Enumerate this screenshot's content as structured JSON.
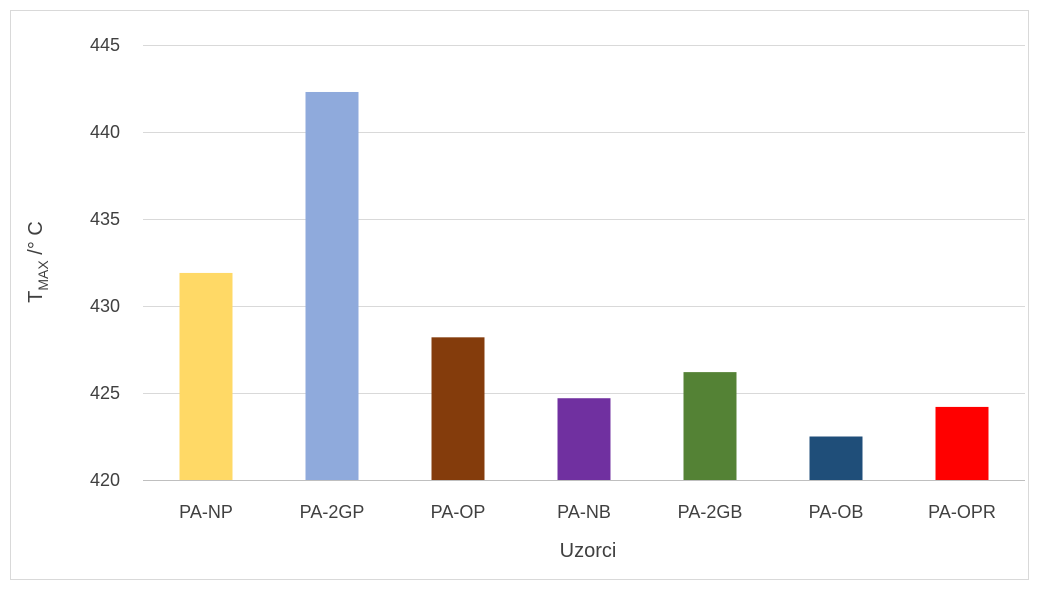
{
  "chart_data": {
    "type": "bar",
    "categories": [
      "PA-NP",
      "PA-2GP",
      "PA-OP",
      "PA-NB",
      "PA-2GB",
      "PA-OB",
      "PA-OPR"
    ],
    "values": [
      431.9,
      442.3,
      428.2,
      424.7,
      426.2,
      422.5,
      424.2
    ],
    "colors": [
      "#FFD966",
      "#8FAADC",
      "#843C0C",
      "#7030A0",
      "#548235",
      "#1F4E79",
      "#FF0000"
    ],
    "title": "",
    "xlabel": "Uzorci",
    "ylabel": {
      "main": "T",
      "sub": "MAX",
      "unit": " /° C"
    },
    "ylim": [
      420,
      445
    ],
    "yticks": [
      420,
      425,
      430,
      435,
      440,
      445
    ],
    "grid": true,
    "legend": "none"
  }
}
